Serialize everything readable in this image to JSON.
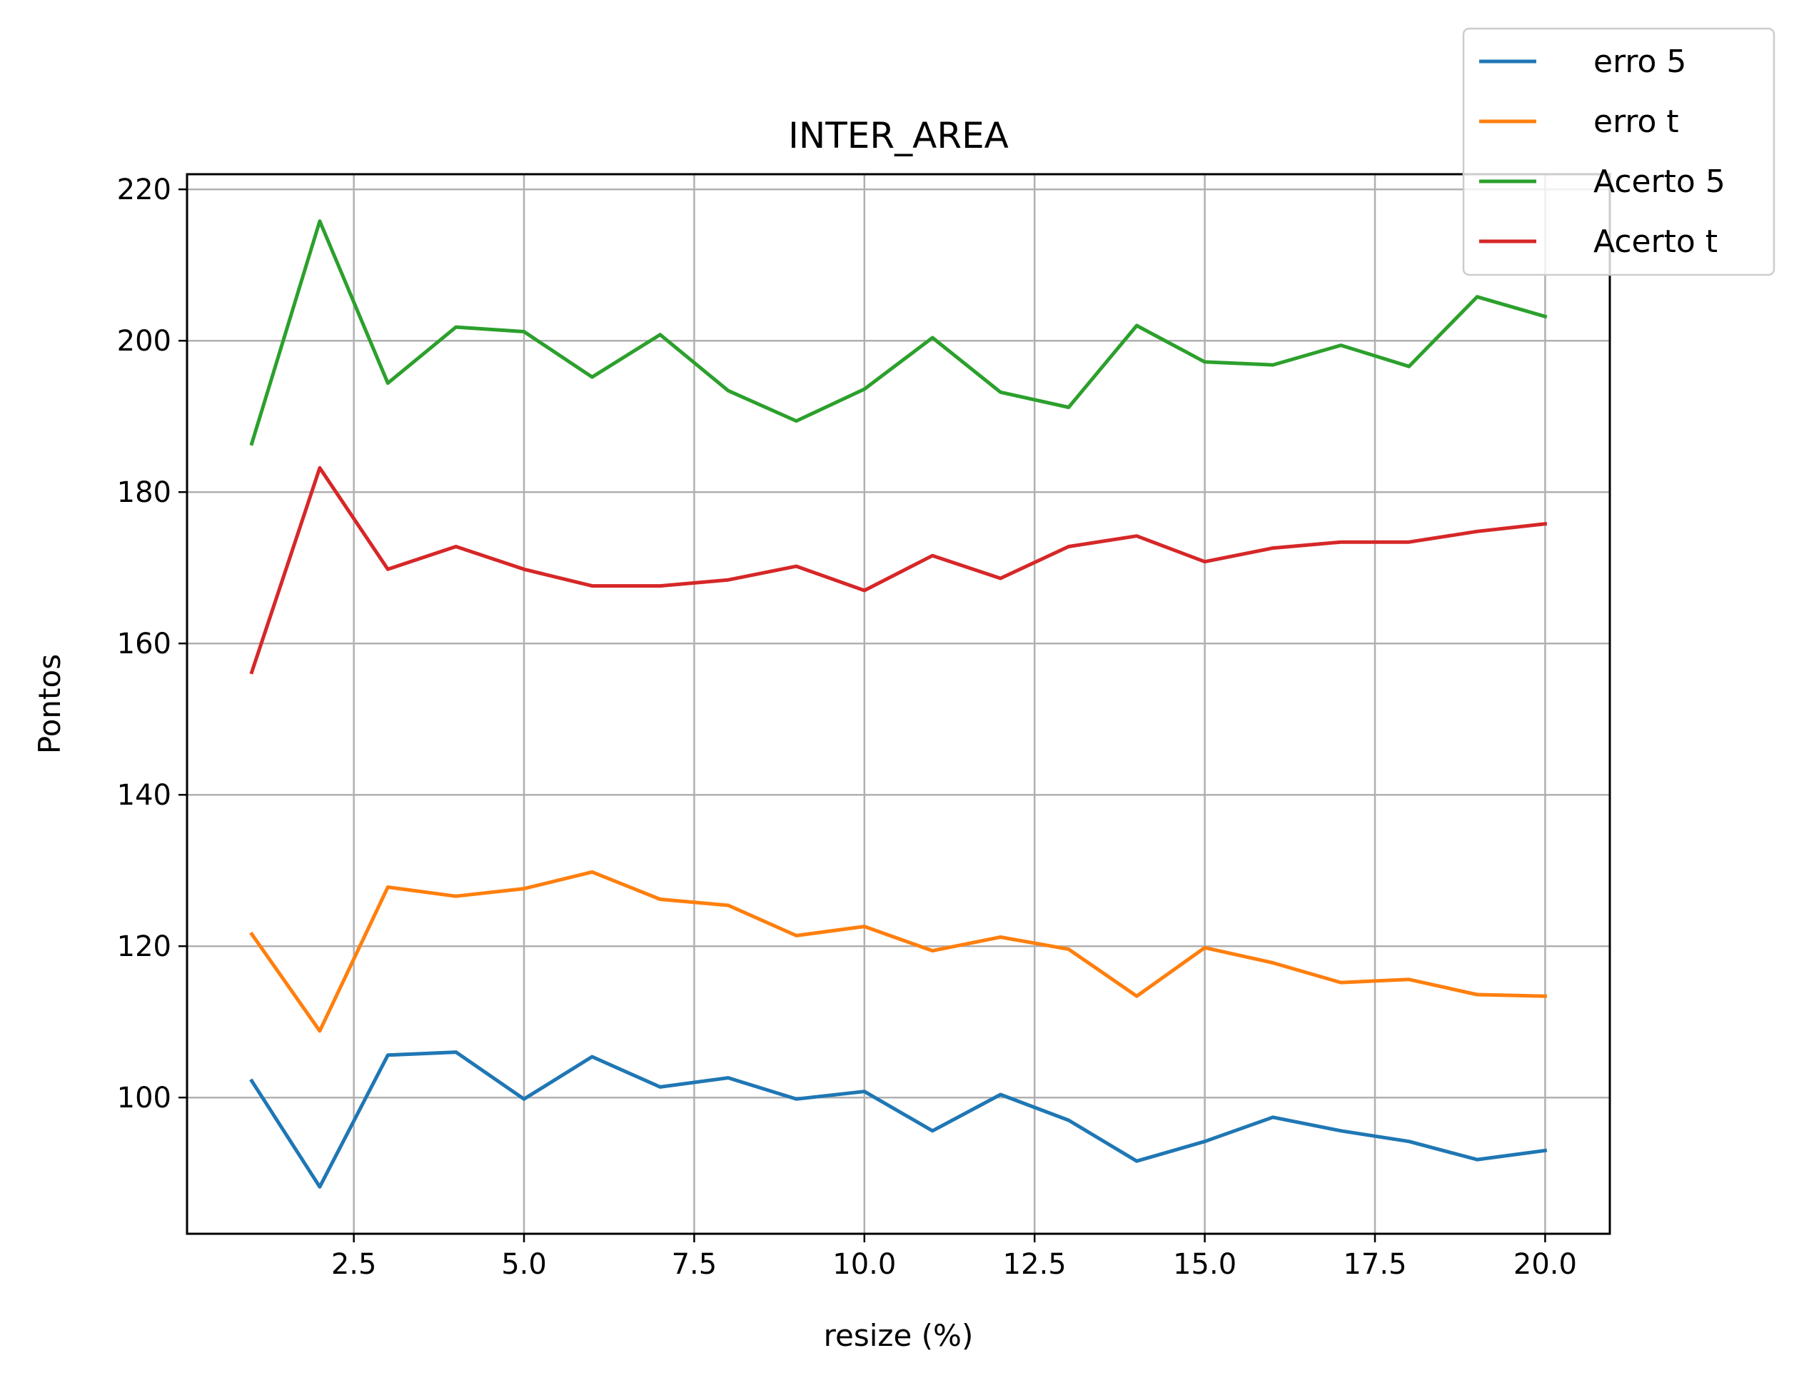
{
  "chart_data": {
    "type": "line",
    "title": "INTER_AREA",
    "xlabel": "resize (%)",
    "ylabel": "Pontos",
    "xlim": [
      0.05,
      20.95
    ],
    "ylim": [
      82,
      222
    ],
    "xticks": [
      {
        "value": 2.5,
        "label": "2.5"
      },
      {
        "value": 5.0,
        "label": "5.0"
      },
      {
        "value": 7.5,
        "label": "7.5"
      },
      {
        "value": 10.0,
        "label": "10.0"
      },
      {
        "value": 12.5,
        "label": "12.5"
      },
      {
        "value": 15.0,
        "label": "15.0"
      },
      {
        "value": 17.5,
        "label": "17.5"
      },
      {
        "value": 20.0,
        "label": "20.0"
      }
    ],
    "yticks": [
      {
        "value": 100,
        "label": "100"
      },
      {
        "value": 120,
        "label": "120"
      },
      {
        "value": 140,
        "label": "140"
      },
      {
        "value": 160,
        "label": "160"
      },
      {
        "value": 180,
        "label": "180"
      },
      {
        "value": 200,
        "label": "200"
      },
      {
        "value": 220,
        "label": "220"
      }
    ],
    "grid": true,
    "legend_position": "top-right, outside plot",
    "x": [
      1,
      2,
      3,
      4,
      5,
      6,
      7,
      8,
      9,
      10,
      11,
      12,
      13,
      14,
      15,
      16,
      17,
      18,
      19,
      20
    ],
    "series": [
      {
        "name": "erro 5",
        "color": "#1f77b4",
        "values": [
          102.2,
          88.2,
          105.6,
          106.0,
          99.8,
          105.4,
          101.4,
          102.6,
          99.8,
          100.8,
          95.6,
          100.4,
          97.0,
          91.6,
          94.2,
          97.4,
          95.6,
          94.2,
          91.8,
          93.0
        ]
      },
      {
        "name": "erro t",
        "color": "#ff7f0e",
        "values": [
          121.6,
          108.8,
          127.8,
          126.6,
          127.6,
          129.8,
          126.2,
          125.4,
          121.4,
          122.6,
          119.4,
          121.2,
          119.6,
          113.4,
          119.8,
          117.8,
          115.2,
          115.6,
          113.6,
          113.4
        ]
      },
      {
        "name": "Acerto 5",
        "color": "#2ca02c",
        "values": [
          186.4,
          215.8,
          194.4,
          201.8,
          201.2,
          195.2,
          200.8,
          193.4,
          189.4,
          193.6,
          200.4,
          193.2,
          191.2,
          202.0,
          197.2,
          196.8,
          199.4,
          196.6,
          205.8,
          203.2
        ]
      },
      {
        "name": "Acerto t",
        "color": "#d62728",
        "values": [
          156.2,
          183.2,
          169.8,
          172.8,
          169.8,
          167.6,
          167.6,
          168.4,
          170.2,
          167.0,
          171.6,
          168.6,
          172.8,
          174.2,
          170.8,
          172.6,
          173.4,
          173.4,
          174.8,
          175.8
        ]
      }
    ]
  }
}
